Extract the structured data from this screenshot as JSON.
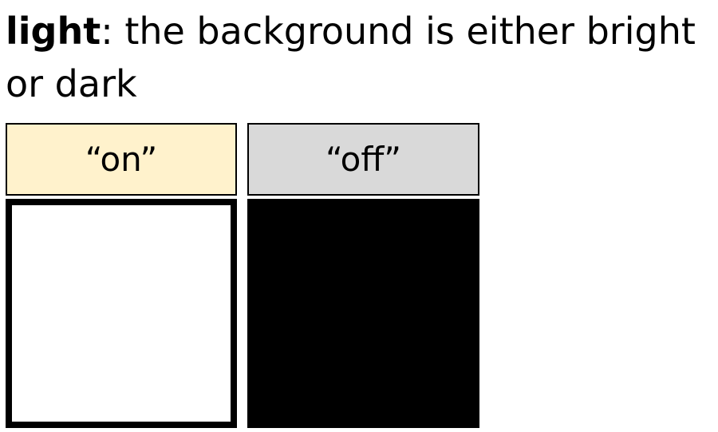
{
  "heading": {
    "term": "light",
    "definition": ": the background is either bright or dark"
  },
  "states": [
    {
      "label": "“on”",
      "label_color": "#FFF2CC",
      "panel_color": "#FFFFFF"
    },
    {
      "label": "“off”",
      "label_color": "#D9D9D9",
      "panel_color": "#000000"
    }
  ]
}
